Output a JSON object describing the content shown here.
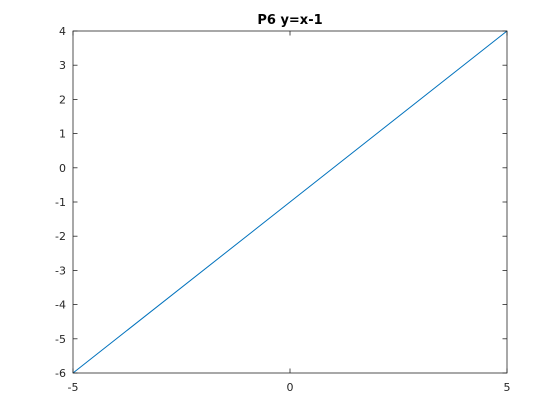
{
  "chart_data": {
    "type": "line",
    "title": "P6 y=x-1",
    "xlabel": "",
    "ylabel": "",
    "xlim": [
      -5,
      5
    ],
    "ylim": [
      -6,
      4
    ],
    "x_ticks": [
      -5,
      0,
      5
    ],
    "y_ticks": [
      -6,
      -5,
      -4,
      -3,
      -2,
      -1,
      0,
      1,
      2,
      3,
      4
    ],
    "x_tick_labels": [
      "-5",
      "0",
      "5"
    ],
    "y_tick_labels": [
      "-6",
      "-5",
      "-4",
      "-3",
      "-2",
      "-1",
      "0",
      "1",
      "2",
      "3",
      "4"
    ],
    "grid": false,
    "box": true,
    "series": [
      {
        "color": "#0072bd",
        "x": [
          -5,
          5
        ],
        "y": [
          -6,
          4
        ]
      }
    ]
  }
}
